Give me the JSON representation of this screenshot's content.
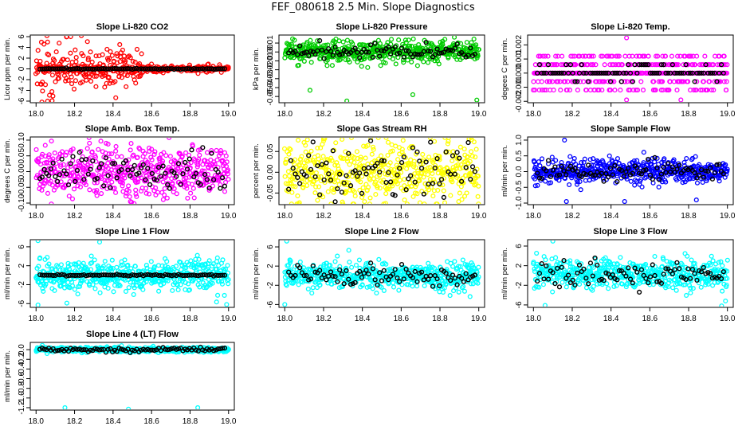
{
  "title": "FEF_080618  2.5 Min. Slope Diagnostics",
  "colors": {
    "black": "#000000",
    "red": "#ff0000",
    "green": "#00cc00",
    "magenta": "#ff00ff",
    "yellow": "#ffff00",
    "blue": "#0000ff",
    "cyan": "#00ffff"
  },
  "chart_data": [
    {
      "type": "scatter",
      "id": "co2",
      "title": "Slope Li-820 CO2",
      "ylabel": "Licor ppm per min.",
      "color": "#ff0000",
      "ylim": [
        -6.3,
        6.3
      ],
      "yticks": [
        -6,
        -4,
        -2,
        0,
        2,
        4,
        6
      ],
      "xlim": [
        17.97,
        19.03
      ],
      "xticks": [
        18.0,
        18.2,
        18.4,
        18.6,
        18.8,
        19.0
      ],
      "gen": {
        "scale": 1.3,
        "tail_amp": 3.2,
        "tail_until": 18.55,
        "black_scale": 0.05,
        "seed": 11
      },
      "outliers": [
        [
          18.06,
          -6.0
        ],
        [
          18.18,
          6.0
        ],
        [
          18.06,
          5.0
        ],
        [
          18.12,
          4.8
        ],
        [
          18.45,
          3.5
        ]
      ]
    },
    {
      "type": "scatter",
      "id": "press",
      "title": "Slope Li-820 Pressure",
      "ylabel": "kPa per min.",
      "color": "#00cc00",
      "ylim": [
        -0.057,
        0.019
      ],
      "yticks": [
        0.01,
        0.0,
        -0.01,
        -0.02,
        -0.03,
        -0.04,
        -0.05
      ],
      "xlim": [
        17.97,
        19.03
      ],
      "xticks": [
        18.0,
        18.2,
        18.4,
        18.6,
        18.8,
        19.0
      ],
      "gen": {
        "scale": 0.006,
        "center": 0.0,
        "black_scale": 0.004,
        "seed": 23
      },
      "outliers": [
        [
          18.32,
          -0.055
        ],
        [
          18.99,
          -0.054
        ],
        [
          18.66,
          -0.048
        ],
        [
          18.13,
          -0.043
        ],
        [
          18.72,
          0.013
        ]
      ]
    },
    {
      "type": "scatter",
      "id": "temp",
      "title": "Slope Li-820 Temp.",
      "ylabel": "degees C per min.",
      "color": "#ff00ff",
      "ylim": [
        -0.0021,
        0.0027
      ],
      "yticks": [
        -0.002,
        -0.001,
        0.0,
        0.001,
        0.002
      ],
      "xlim": [
        17.97,
        19.03
      ],
      "xticks": [
        18.0,
        18.2,
        18.4,
        18.6,
        18.8,
        19.0
      ],
      "gen": {
        "quantum": 0.0006,
        "spread": 0.0011,
        "black_scale": 0.0006,
        "seed": 37
      },
      "outliers": [
        [
          18.48,
          0.0025
        ],
        [
          18.48,
          -0.0019
        ],
        [
          18.76,
          -0.0019
        ]
      ]
    },
    {
      "type": "scatter",
      "id": "box",
      "title": "Slope Amb. Box Temp.",
      "ylabel": "degrees C per min.",
      "color": "#ff00ff",
      "ylim": [
        -0.105,
        0.11
      ],
      "yticks": [
        -0.1,
        -0.05,
        0.0,
        0.05,
        0.1
      ],
      "xlim": [
        17.97,
        19.03
      ],
      "xticks": [
        18.0,
        18.2,
        18.4,
        18.6,
        18.8,
        19.0
      ],
      "gen": {
        "scale": 0.042,
        "black_scale": 0.03,
        "seed": 41
      },
      "outliers": [
        [
          18.49,
          -0.095
        ],
        [
          18.08,
          0.097
        ],
        [
          18.98,
          0.06
        ]
      ]
    },
    {
      "type": "scatter",
      "id": "rh",
      "title": "Slope Gas Stream RH",
      "ylabel": "percent per min.",
      "color": "#ffff00",
      "ylim": [
        -0.078,
        0.085
      ],
      "yticks": [
        -0.05,
        0.0,
        0.05
      ],
      "xlim": [
        17.97,
        19.03
      ],
      "xticks": [
        18.0,
        18.2,
        18.4,
        18.6,
        18.8,
        19.0
      ],
      "gen": {
        "scale": 0.04,
        "black_scale": 0.035,
        "seed": 53
      },
      "outliers": [
        [
          18.2,
          0.08
        ],
        [
          18.52,
          -0.075
        ],
        [
          18.95,
          0.08
        ]
      ]
    },
    {
      "type": "scatter",
      "id": "flow",
      "title": "Slope Sample Flow",
      "ylabel": "ml/min per min.",
      "color": "#0000ff",
      "ylim": [
        -1.05,
        1.1
      ],
      "yticks": [
        -1.0,
        -0.5,
        0.0,
        0.5,
        1.0
      ],
      "xlim": [
        17.97,
        19.03
      ],
      "xticks": [
        18.0,
        18.2,
        18.4,
        18.6,
        18.8,
        19.0
      ],
      "gen": {
        "scale": 0.18,
        "black_scale": 0.15,
        "seed": 67
      },
      "outliers": [
        [
          18.16,
          1.0
        ],
        [
          18.17,
          -0.95
        ],
        [
          18.47,
          -0.95
        ],
        [
          18.84,
          -0.9
        ],
        [
          18.01,
          -0.45
        ]
      ]
    },
    {
      "type": "scatter",
      "id": "line1",
      "title": "Slope Line 1 Flow",
      "ylabel": "ml/min per min.",
      "color": "#00ffff",
      "ylim": [
        -6.8,
        7.5
      ],
      "yticks": [
        -6,
        -2,
        2,
        6
      ],
      "xlim": [
        17.97,
        19.03
      ],
      "xticks": [
        18.0,
        18.2,
        18.4,
        18.6,
        18.8,
        19.0
      ],
      "gen": {
        "scale": 1.6,
        "black_scale": 0.08,
        "seed": 71
      },
      "outliers": [
        [
          18.01,
          7.3
        ],
        [
          18.33,
          7.0
        ],
        [
          18.01,
          -6.3
        ],
        [
          18.16,
          -5.9
        ],
        [
          18.99,
          -6.2
        ]
      ]
    },
    {
      "type": "scatter",
      "id": "line2",
      "title": "Slope Line 2 Flow",
      "ylabel": "ml/min per min.",
      "color": "#00ffff",
      "ylim": [
        -6.6,
        7.5
      ],
      "yticks": [
        -6,
        -2,
        2,
        6
      ],
      "xlim": [
        17.97,
        19.03
      ],
      "xticks": [
        18.0,
        18.2,
        18.4,
        18.6,
        18.8,
        19.0
      ],
      "gen": {
        "scale": 1.3,
        "black_scale": 1.1,
        "seed": 83
      },
      "outliers": [
        [
          18.01,
          7.2
        ],
        [
          18.0,
          -6.0
        ],
        [
          18.33,
          5.3
        ]
      ]
    },
    {
      "type": "scatter",
      "id": "line3",
      "title": "Slope Line 3 Flow",
      "ylabel": "ml/min per min.",
      "color": "#00ffff",
      "ylim": [
        -6.5,
        7.3
      ],
      "yticks": [
        -6,
        -2,
        2,
        6
      ],
      "xlim": [
        17.97,
        19.03
      ],
      "xticks": [
        18.0,
        18.2,
        18.4,
        18.6,
        18.8,
        19.0
      ],
      "gen": {
        "scale": 1.5,
        "center": 0.3,
        "black_scale": 1.3,
        "seed": 97
      },
      "outliers": [
        [
          18.06,
          -6.1
        ],
        [
          18.1,
          7.0
        ],
        [
          18.99,
          -5.2
        ],
        [
          18.97,
          -6.2
        ]
      ]
    },
    {
      "type": "scatter",
      "id": "line4",
      "title": "Slope Line 4 (LT) Flow",
      "ylabel": "ml/min per min.",
      "color": "#00ffff",
      "ylim": [
        -1.25,
        0.15
      ],
      "yticks": [
        0.0,
        -0.2,
        -0.4,
        -0.6,
        -0.8,
        -1.0,
        -1.2
      ],
      "xlim": [
        17.97,
        19.03
      ],
      "xticks": [
        18.0,
        18.2,
        18.4,
        18.6,
        18.8,
        19.0
      ],
      "gen": {
        "scale": 0.025,
        "black_scale": 0.025,
        "seed": 101
      },
      "outliers": [
        [
          18.15,
          -1.2
        ],
        [
          18.48,
          -1.23
        ],
        [
          18.84,
          -1.2
        ]
      ]
    }
  ]
}
